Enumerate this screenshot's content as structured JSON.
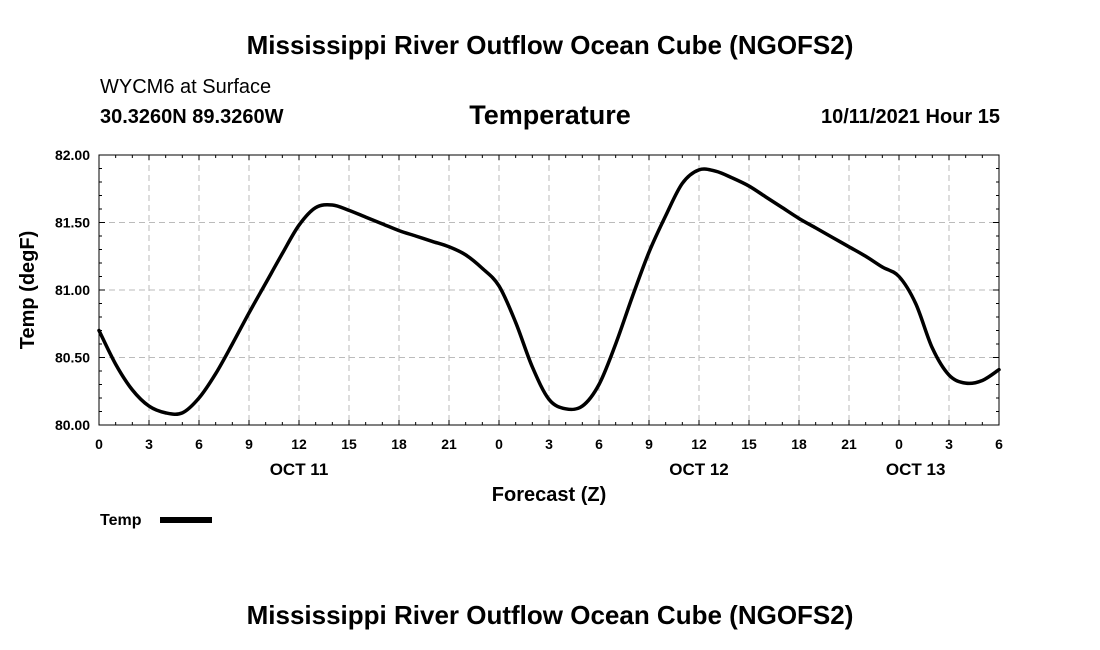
{
  "header": {
    "main_title": "Mississippi River Outflow Ocean Cube (NGOFS2)",
    "station": "WYCM6 at Surface",
    "coords": "30.3260N  89.3260W",
    "datetime": "10/11/2021 Hour 15"
  },
  "footer": {
    "title": "Mississippi River Outflow Ocean Cube (NGOFS2)"
  },
  "chart_data": {
    "type": "line",
    "title": "Temperature",
    "xlabel": "Forecast (Z)",
    "ylabel": "Temp (degF)",
    "ylim": [
      80.0,
      82.0
    ],
    "xlim_hours": [
      0,
      54
    ],
    "y_ticks": [
      "80.00",
      "80.50",
      "81.00",
      "81.50",
      "82.00"
    ],
    "x_tick_labels": [
      "0",
      "3",
      "6",
      "9",
      "12",
      "15",
      "18",
      "21",
      "0",
      "3",
      "6",
      "9",
      "12",
      "15",
      "18",
      "21",
      "0",
      "3",
      "6"
    ],
    "day_labels": [
      {
        "label": "OCT 11",
        "hour": 12
      },
      {
        "label": "OCT 12",
        "hour": 36
      },
      {
        "label": "OCT 13",
        "hour": 49
      }
    ],
    "grid": true,
    "legend": "bottom-left",
    "series": [
      {
        "name": "Temp",
        "color": "#000000",
        "x_hours": [
          0,
          1,
          2,
          3,
          4,
          5,
          6,
          7,
          8,
          9,
          10,
          11,
          12,
          13,
          14,
          15,
          16,
          17,
          18,
          19,
          20,
          21,
          22,
          23,
          24,
          25,
          26,
          27,
          28,
          29,
          30,
          31,
          32,
          33,
          34,
          35,
          36,
          37,
          38,
          39,
          40,
          41,
          42,
          43,
          44,
          45,
          46,
          47,
          48,
          49,
          50,
          51,
          52,
          53,
          54
        ],
        "values": [
          80.7,
          80.45,
          80.26,
          80.14,
          80.09,
          80.09,
          80.2,
          80.38,
          80.6,
          80.83,
          81.05,
          81.27,
          81.48,
          81.61,
          81.63,
          81.59,
          81.54,
          81.49,
          81.44,
          81.4,
          81.36,
          81.32,
          81.26,
          81.16,
          81.03,
          80.76,
          80.43,
          80.19,
          80.12,
          80.14,
          80.3,
          80.6,
          80.95,
          81.28,
          81.55,
          81.79,
          81.89,
          81.88,
          81.83,
          81.77,
          81.69,
          81.61,
          81.53,
          81.46,
          81.39,
          81.32,
          81.25,
          81.17,
          81.1,
          80.9,
          80.57,
          80.37,
          80.31,
          80.33,
          80.41
        ]
      }
    ]
  }
}
